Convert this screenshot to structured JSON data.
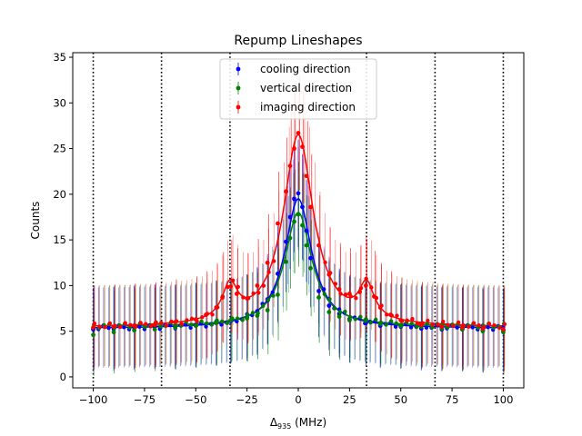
{
  "chart_data": {
    "type": "scatter",
    "title": "Repump Lineshapes",
    "xlabel_main": "Δ",
    "xlabel_sub": "935",
    "xlabel_unit": " (MHz)",
    "ylabel": "Counts",
    "xlim": [
      -110,
      110
    ],
    "ylim": [
      -1.2,
      35.5
    ],
    "xticks": [
      -100,
      -75,
      -50,
      -25,
      0,
      25,
      50,
      75,
      100
    ],
    "xtick_labels": [
      "−100",
      "−75",
      "−50",
      "−25",
      "0",
      "25",
      "50",
      "75",
      "100"
    ],
    "yticks": [
      0,
      5,
      10,
      15,
      20,
      25,
      30,
      35
    ],
    "ytick_labels": [
      "0",
      "5",
      "10",
      "15",
      "20",
      "25",
      "30",
      "35"
    ],
    "vlines": [
      -100,
      -66.7,
      -33.3,
      33.3,
      66.7,
      100
    ],
    "legend_position": "upper-center",
    "series": [
      {
        "name": "cooling direction",
        "color": "#0000ff",
        "x": [
          -100,
          -90,
          -80,
          -70,
          -60,
          -50,
          -40,
          -33,
          -25,
          -20,
          -15,
          -10,
          -6,
          -4,
          -2,
          0,
          2,
          4,
          6,
          10,
          15,
          20,
          25,
          33,
          40,
          50,
          60,
          70,
          80,
          90,
          100
        ],
        "y": [
          5.2,
          5.3,
          5.4,
          5.5,
          5.5,
          5.7,
          5.9,
          6.1,
          6.5,
          7.2,
          8.5,
          11.3,
          14.8,
          17.5,
          19.5,
          20.1,
          18.6,
          16.0,
          13.0,
          9.4,
          7.8,
          6.9,
          6.3,
          5.9,
          5.6,
          5.5,
          5.3,
          5.2,
          5.2,
          5.1,
          5.1
        ],
        "fit": {
          "center": 0,
          "gamma": 8,
          "amplitude": 14.2,
          "offset": 5.3
        }
      },
      {
        "name": "vertical direction",
        "color": "#008000",
        "x": [
          -100,
          -90,
          -80,
          -70,
          -60,
          -50,
          -40,
          -33,
          -25,
          -20,
          -15,
          -10,
          -6,
          -4,
          -2,
          0,
          2,
          4,
          6,
          10,
          15,
          20,
          25,
          33,
          40,
          50,
          60,
          70,
          80,
          90,
          100
        ],
        "y": [
          4.6,
          4.9,
          5.1,
          5.2,
          5.4,
          5.6,
          5.9,
          6.2,
          6.4,
          6.7,
          7.3,
          9.0,
          12.6,
          15.2,
          17.0,
          17.8,
          16.6,
          14.4,
          11.9,
          8.7,
          7.1,
          6.6,
          6.2,
          6.3,
          5.8,
          5.6,
          5.5,
          5.3,
          5.2,
          5.0,
          4.9
        ],
        "fit": {
          "center": 0,
          "gamma": 8,
          "amplitude": 12.5,
          "offset": 5.5
        }
      },
      {
        "name": "imaging direction",
        "color": "#ff0000",
        "x": [
          -100,
          -90,
          -80,
          -70,
          -60,
          -50,
          -45,
          -40,
          -37,
          -33,
          -30,
          -25,
          -20,
          -15,
          -10,
          -6,
          -4,
          -2,
          0,
          2,
          4,
          6,
          10,
          15,
          20,
          25,
          30,
          33,
          37,
          40,
          45,
          50,
          60,
          70,
          80,
          90,
          100
        ],
        "y": [
          5.4,
          5.5,
          5.6,
          5.7,
          6.0,
          6.3,
          6.8,
          7.6,
          8.7,
          9.9,
          9.1,
          8.6,
          10.0,
          12.5,
          16.8,
          20.3,
          23.1,
          25.0,
          26.7,
          25.2,
          22.0,
          18.6,
          14.4,
          11.2,
          9.6,
          9.1,
          9.3,
          10.0,
          8.8,
          7.6,
          6.8,
          6.2,
          5.7,
          5.5,
          5.4,
          5.3,
          5.2
        ],
        "fit": {
          "center": 0,
          "gamma": 9,
          "amplitude": 21.0,
          "offset": 5.4,
          "side_peaks": [
            {
              "center": -33.3,
              "gamma": 4.5,
              "amplitude": 3.8
            },
            {
              "center": 33.3,
              "gamma": 4.5,
              "amplitude": 3.8
            }
          ]
        }
      }
    ]
  }
}
